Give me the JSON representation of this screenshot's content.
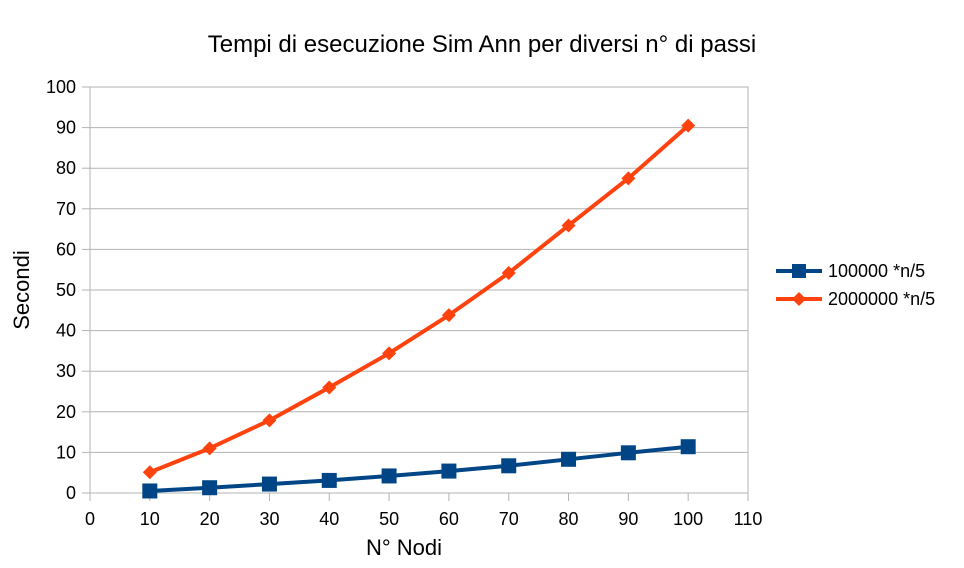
{
  "chart_data": {
    "type": "line",
    "title": "Tempi di esecuzione Sim Ann per diversi n° di passi",
    "xlabel": "N° Nodi",
    "ylabel": "Secondi",
    "xlim": [
      0,
      110
    ],
    "ylim": [
      0,
      100
    ],
    "x_ticks": [
      "0",
      "10",
      "20",
      "30",
      "40",
      "50",
      "60",
      "70",
      "80",
      "90",
      "100",
      "110"
    ],
    "y_ticks": [
      "0",
      "10",
      "20",
      "30",
      "40",
      "50",
      "60",
      "70",
      "80",
      "90",
      "100"
    ],
    "grid": "horizontal",
    "legend_position": "right",
    "x": [
      10,
      20,
      30,
      40,
      50,
      60,
      70,
      80,
      90,
      100
    ],
    "series": [
      {
        "name": "100000 *n/5",
        "color": "#004586",
        "marker": "square",
        "values": [
          0.5,
          1.3,
          2.2,
          3.1,
          4.2,
          5.4,
          6.7,
          8.3,
          9.9,
          11.4
        ]
      },
      {
        "name": "2000000 *n/5",
        "color": "#ff420e",
        "marker": "diamond",
        "values": [
          5.1,
          11.0,
          17.9,
          26.0,
          34.4,
          43.8,
          54.2,
          65.9,
          77.5,
          90.5
        ]
      }
    ]
  }
}
